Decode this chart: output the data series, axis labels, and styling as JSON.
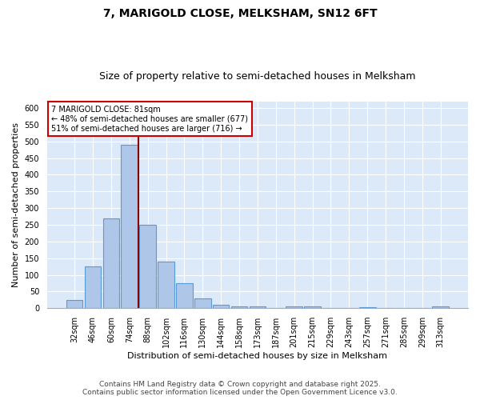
{
  "title1": "7, MARIGOLD CLOSE, MELKSHAM, SN12 6FT",
  "title2": "Size of property relative to semi-detached houses in Melksham",
  "xlabel": "Distribution of semi-detached houses by size in Melksham",
  "ylabel": "Number of semi-detached properties",
  "categories": [
    "32sqm",
    "46sqm",
    "60sqm",
    "74sqm",
    "88sqm",
    "102sqm",
    "116sqm",
    "130sqm",
    "144sqm",
    "158sqm",
    "173sqm",
    "187sqm",
    "201sqm",
    "215sqm",
    "229sqm",
    "243sqm",
    "257sqm",
    "271sqm",
    "285sqm",
    "299sqm",
    "313sqm"
  ],
  "values": [
    25,
    125,
    270,
    490,
    250,
    140,
    75,
    30,
    10,
    5,
    5,
    0,
    5,
    5,
    0,
    0,
    2,
    0,
    0,
    0,
    5
  ],
  "bar_color": "#aec6e8",
  "bar_edge_color": "#5b9bd5",
  "property_line_color": "#8b0000",
  "property_line_x": 3.5,
  "annotation_text": "7 MARIGOLD CLOSE: 81sqm\n← 48% of semi-detached houses are smaller (677)\n51% of semi-detached houses are larger (716) →",
  "annotation_box_color": "#ffffff",
  "annotation_box_edge_color": "#cc0000",
  "ylim": [
    0,
    620
  ],
  "yticks": [
    0,
    50,
    100,
    150,
    200,
    250,
    300,
    350,
    400,
    450,
    500,
    550,
    600
  ],
  "footer1": "Contains HM Land Registry data © Crown copyright and database right 2025.",
  "footer2": "Contains public sector information licensed under the Open Government Licence v3.0.",
  "fig_bg_color": "#ffffff",
  "plot_bg_color": "#dce9f8",
  "grid_color": "#ffffff",
  "title1_fontsize": 10,
  "title2_fontsize": 9,
  "ylabel_fontsize": 8,
  "xlabel_fontsize": 8,
  "tick_fontsize": 7,
  "annotation_fontsize": 7,
  "footer_fontsize": 6.5
}
